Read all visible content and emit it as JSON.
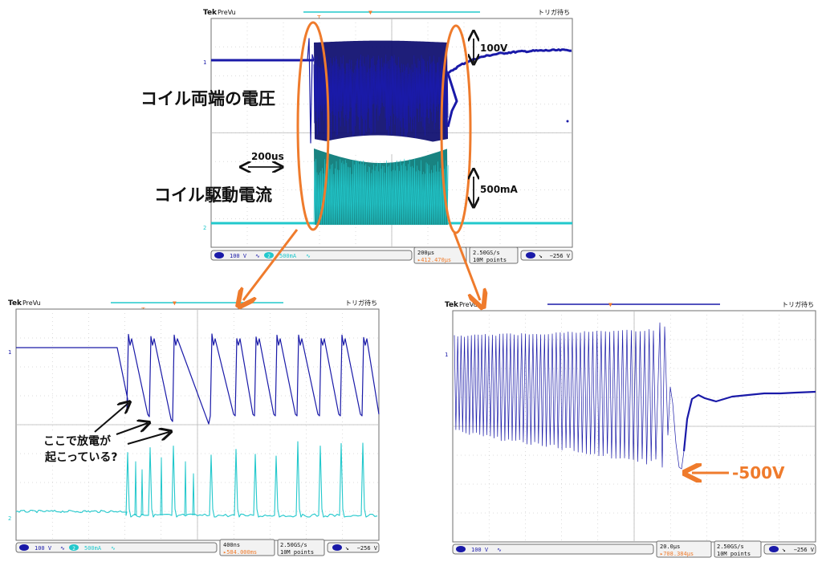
{
  "colors": {
    "ch1": "#1a1aa8",
    "ch1_dark": "#0b0b6e",
    "ch2": "#22c8cc",
    "ch2_dark": "#0d7c7a",
    "accent_orange": "#ef7b2c",
    "grid": "#b8b8b8",
    "panel_border": "#6f6f6f",
    "status_bg": "#f2f2f2"
  },
  "scopes": {
    "top": {
      "brand": "Tek",
      "mode": "PreVu",
      "trigger_status": "トリガ待ち",
      "ch1_marker": "1",
      "ch2_marker": "2",
      "ch1_scale": "100 V",
      "ch2_num": "2",
      "ch2_scale": "500mA",
      "timebase": "200µs",
      "trigger_pos": "412.470µs",
      "sample_rate": "2.50GS/s",
      "record": "10M points",
      "trig_channel": "1",
      "trig_level": "−256 V"
    },
    "bottom_left": {
      "brand": "Tek",
      "mode": "PreVu",
      "trigger_status": "トリガ待ち",
      "ch1_marker": "1",
      "ch2_marker": "2",
      "ch1_scale": "100 V",
      "ch2_num": "2",
      "ch2_scale": "500mA",
      "timebase": "400ns",
      "trigger_pos": "584.000ms",
      "sample_rate": "2.50GS/s",
      "record": "10M points",
      "trig_channel": "1",
      "trig_level": "−256 V"
    },
    "bottom_right": {
      "brand": "Tek",
      "mode": "PreVu",
      "trigger_status": "トリガ待ち",
      "ch1_marker": "1",
      "ch1_scale": "100 V",
      "timebase": "20.0µs",
      "trigger_pos": "708.384µs",
      "sample_rate": "2.50GS/s",
      "record": "10M points",
      "trig_channel": "1",
      "trig_level": "−256 V"
    }
  },
  "annotations": {
    "voltage_label": "コイル両端の電圧",
    "current_label": "コイル駆動電流",
    "time_span": "200us",
    "v_scale": "100V",
    "i_scale": "500mA",
    "discharge_line1": "ここで放電が",
    "discharge_line2": "起こっている?",
    "neg_peak": "-500V"
  },
  "chart_data": [
    {
      "type": "line",
      "title": "",
      "x_unit": "µs",
      "x_per_div": 200,
      "divisions": 10,
      "series": [
        {
          "name": "",
          "description_points": "Ch1 flat at ~+40 V before burst; ringing burst from ~0 to ~850 µs spanning ~+100 V to ~−80 V; after burst recovers exponentially toward ~+35 V",
          "values": [
            40,
            40,
            40,
            100,
            -80,
            100,
            -80,
            35
          ]
        },
        {
          "name": "",
          "values": [
            0,
            0,
            0,
            500,
            0,
            500,
            0,
            0
          ]
        }
      ]
    },
    {
      "type": "line",
      "title": "",
      "x_unit": "ns",
      "x_per_div": 400,
      "divisions": 10,
      "series": [
        {
          "name": "",
          "values": [
            140,
            140,
            140,
            30,
            150,
            30,
            140,
            20,
            140,
            20,
            140,
            20,
            140,
            20
          ]
        },
        {
          "name": "",
          "values": [
            0,
            0,
            0,
            1200,
            0,
            1200,
            0,
            1200,
            0,
            1200,
            0,
            1200,
            0
          ]
        }
      ]
    },
    {
      "type": "line",
      "title": "",
      "x_unit": "µs",
      "x_per_div": 20,
      "divisions": 10,
      "series": [
        {
          "name": "",
          "values": [
            150,
            -100,
            150,
            -100,
            150,
            -120,
            160,
            -500,
            60,
            30,
            40
          ]
        }
      ]
    }
  ]
}
